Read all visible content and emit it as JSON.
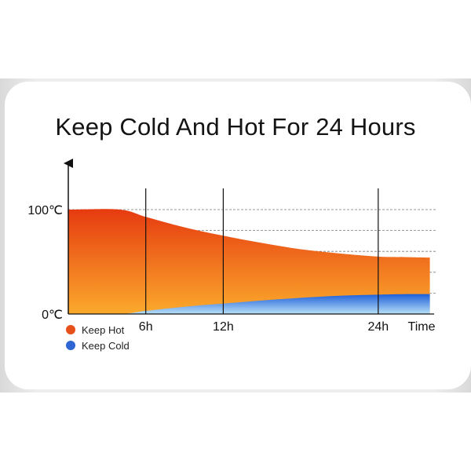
{
  "title": "Keep Cold And Hot For 24 Hours",
  "colors": {
    "hot_top": "#e63a10",
    "hot_bottom": "#fbaa2c",
    "cold_top": "#1e5fd8",
    "cold_bottom": "#b9e1f8",
    "hot_legend": "#e6501a",
    "cold_legend": "#2f66d6"
  },
  "chart_data": {
    "type": "area",
    "title": "Keep Cold And Hot For 24 Hours",
    "xlabel": "Time",
    "ylabel": "",
    "xlim": [
      0,
      29
    ],
    "ylim": [
      0,
      100
    ],
    "y_ticks": [
      {
        "value": 0,
        "label": "0℃"
      },
      {
        "value": 100,
        "label": "100℃"
      }
    ],
    "x_ticks": [
      {
        "value": 6,
        "label": "6h"
      },
      {
        "value": 12,
        "label": "12h"
      },
      {
        "value": 24,
        "label": "24h"
      }
    ],
    "axis_end_label": "Time",
    "gridlines_y": [
      20,
      40,
      60,
      80,
      100
    ],
    "legend_position": "bottom-left",
    "series": [
      {
        "name": "Keep Hot",
        "x": [
          0,
          4,
          6,
          9,
          12,
          15,
          18,
          21,
          24,
          26,
          28
        ],
        "y": [
          100,
          100,
          93,
          83,
          75,
          68,
          62,
          58,
          55,
          54.5,
          54
        ]
      },
      {
        "name": "Keep Cold",
        "x": [
          0,
          4,
          6,
          9,
          12,
          15,
          18,
          21,
          24,
          26,
          28
        ],
        "y": [
          0,
          0,
          3,
          7,
          10,
          13,
          15.5,
          17.5,
          18.5,
          19,
          19
        ]
      }
    ]
  }
}
